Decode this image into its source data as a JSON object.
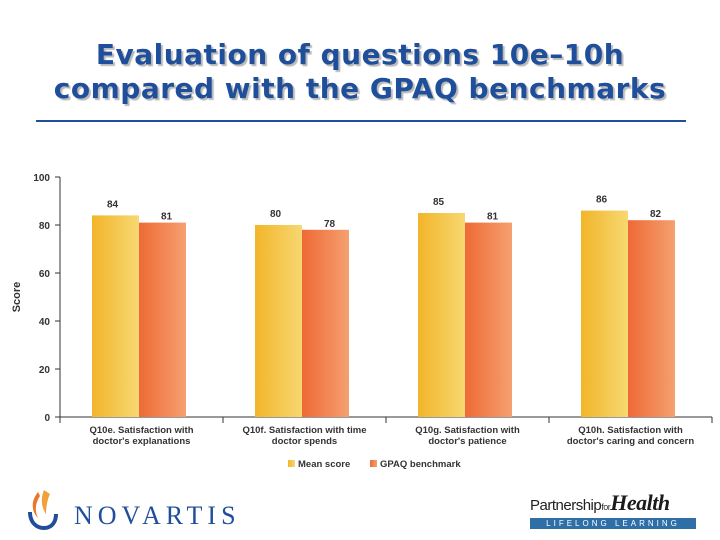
{
  "slide": {
    "title_line1": "Evaluation of questions 10e–10h",
    "title_line2": "compared with the GPAQ benchmarks"
  },
  "colors": {
    "title": "#1f4e9a",
    "mean": "#f2b52a",
    "mean_light": "#f7d872",
    "benchmark": "#ee6a35",
    "benchmark_light": "#f5a070",
    "axis": "#333333"
  },
  "chart_data": {
    "type": "bar",
    "categories": [
      [
        "Q10e. Satisfaction with",
        "doctor's explanations"
      ],
      [
        "Q10f. Satisfaction with time",
        "doctor spends"
      ],
      [
        "Q10g. Satisfaction with",
        "doctor's patience"
      ],
      [
        "Q10h. Satisfaction with",
        "doctor's caring and concern"
      ]
    ],
    "series": [
      {
        "name": "Mean score",
        "values": [
          84,
          80,
          85,
          86
        ]
      },
      {
        "name": "GPAQ benchmark",
        "values": [
          81,
          78,
          81,
          82
        ]
      }
    ],
    "ylabel": "Score",
    "ylim": [
      0,
      100
    ],
    "yticks": [
      0,
      20,
      40,
      60,
      80,
      100
    ],
    "legend_position": "bottom"
  },
  "logos": {
    "novartis": "NOVARTIS",
    "partnership": "Partnership",
    "for": "for",
    "health": "Health",
    "lifelong": "LIFELONG LEARNING"
  }
}
